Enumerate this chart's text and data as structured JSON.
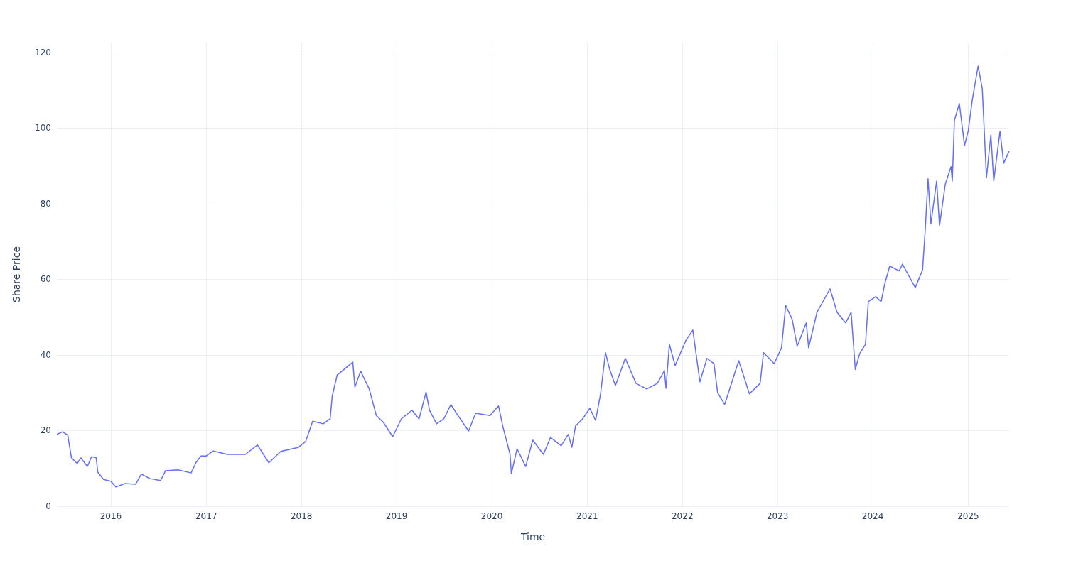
{
  "chart_data": {
    "type": "line",
    "xlabel": "Time",
    "ylabel": "Share Price",
    "x": [
      "2015-06-08",
      "2015-06-30",
      "2015-07-20",
      "2015-08-03",
      "2015-08-25",
      "2015-09-08",
      "2015-10-03",
      "2015-10-19",
      "2015-11-06",
      "2015-11-12",
      "2015-12-04",
      "2016-01-01",
      "2016-01-20",
      "2016-02-24",
      "2016-04-05",
      "2016-04-27",
      "2016-05-30",
      "2016-07-10",
      "2016-07-29",
      "2016-09-16",
      "2016-11-04",
      "2016-11-23",
      "2016-12-12",
      "2017-01-01",
      "2017-01-28",
      "2017-03-23",
      "2017-05-31",
      "2017-07-16",
      "2017-08-29",
      "2017-10-14",
      "2017-12-21",
      "2018-01-17",
      "2018-02-13",
      "2018-03-25",
      "2018-04-21",
      "2018-04-29",
      "2018-05-18",
      "2018-06-14",
      "2018-07-17",
      "2018-07-25",
      "2018-08-16",
      "2018-09-18",
      "2018-10-15",
      "2018-11-11",
      "2018-12-17",
      "2019-01-19",
      "2019-03-01",
      "2019-03-28",
      "2019-04-24",
      "2019-05-07",
      "2019-06-03",
      "2019-07-01",
      "2019-07-28",
      "2019-08-24",
      "2019-10-04",
      "2019-10-31",
      "2019-12-25",
      "2020-01-27",
      "2020-02-12",
      "2020-03-11",
      "2020-03-16",
      "2020-04-07",
      "2020-05-10",
      "2020-06-06",
      "2020-07-17",
      "2020-08-13",
      "2020-09-23",
      "2020-10-20",
      "2020-11-03",
      "2020-11-17",
      "2020-12-14",
      "2021-01-11",
      "2021-02-02",
      "2021-02-21",
      "2021-03-12",
      "2021-03-28",
      "2021-04-19",
      "2021-05-27",
      "2021-07-07",
      "2021-08-17",
      "2021-09-27",
      "2021-10-24",
      "2021-10-30",
      "2021-11-12",
      "2021-12-04",
      "2022-01-14",
      "2022-02-10",
      "2022-03-09",
      "2022-04-05",
      "2022-05-02",
      "2022-05-16",
      "2022-06-12",
      "2022-08-05",
      "2022-09-15",
      "2022-10-26",
      "2022-11-08",
      "2022-12-19",
      "2023-01-16",
      "2023-02-01",
      "2023-02-26",
      "2023-03-17",
      "2023-04-21",
      "2023-04-30",
      "2023-06-01",
      "2023-07-21",
      "2023-08-17",
      "2023-09-19",
      "2023-10-10",
      "2023-10-26",
      "2023-11-12",
      "2023-12-04",
      "2023-12-15",
      "2024-01-12",
      "2024-02-02",
      "2024-02-16",
      "2024-03-06",
      "2024-04-11",
      "2024-04-24",
      "2024-06-12",
      "2024-07-10",
      "2024-07-20",
      "2024-07-31",
      "2024-08-11",
      "2024-09-02",
      "2024-09-13",
      "2024-10-05",
      "2024-10-27",
      "2024-11-01",
      "2024-11-09",
      "2024-11-28",
      "2024-12-18",
      "2025-01-01",
      "2025-01-17",
      "2025-02-08",
      "2025-02-24",
      "2025-03-12",
      "2025-03-29",
      "2025-04-09",
      "2025-05-03",
      "2025-05-17",
      "2025-06-07"
    ],
    "series": [
      {
        "color": "#636efa",
        "values": [
          19.0,
          19.7,
          18.8,
          12.8,
          11.3,
          12.8,
          10.5,
          13.1,
          12.8,
          9.0,
          7.1,
          6.6,
          5.1,
          6.0,
          5.8,
          8.5,
          7.3,
          6.8,
          9.4,
          9.6,
          8.8,
          11.6,
          13.3,
          13.3,
          14.6,
          13.7,
          13.7,
          16.2,
          11.5,
          14.5,
          15.6,
          17.1,
          22.5,
          21.8,
          23.1,
          29.1,
          34.7,
          36.2,
          38.1,
          31.5,
          35.7,
          31.0,
          24.0,
          22.2,
          18.4,
          23.1,
          25.4,
          23.1,
          30.2,
          25.4,
          21.8,
          23.1,
          26.9,
          24.0,
          19.9,
          24.6,
          24.0,
          26.5,
          21.2,
          13.7,
          8.6,
          15.2,
          10.5,
          17.5,
          13.7,
          18.2,
          16.0,
          19.0,
          15.6,
          21.2,
          23.1,
          25.9,
          22.7,
          29.7,
          40.6,
          36.2,
          31.9,
          39.1,
          32.5,
          31.0,
          32.5,
          35.9,
          31.2,
          42.8,
          37.2,
          43.8,
          46.6,
          32.9,
          39.1,
          37.7,
          30.0,
          26.9,
          38.5,
          29.7,
          32.5,
          40.6,
          37.7,
          41.9,
          53.1,
          49.4,
          42.3,
          48.5,
          41.9,
          51.3,
          57.5,
          51.3,
          48.5,
          51.3,
          36.2,
          40.4,
          42.8,
          54.1,
          55.4,
          54.1,
          58.8,
          63.5,
          62.2,
          64.0,
          57.8,
          62.5,
          72.9,
          86.6,
          74.7,
          86.0,
          74.2,
          85.1,
          89.8,
          86.0,
          102.0,
          106.5,
          95.4,
          99.2,
          107.6,
          116.4,
          110.4,
          86.9,
          98.2,
          86.0,
          99.2,
          90.7,
          93.9
        ]
      }
    ],
    "xlim": [
      "2015-06-08",
      "2025-06-07"
    ],
    "xticks": [
      "2016",
      "2017",
      "2018",
      "2019",
      "2020",
      "2021",
      "2022",
      "2023",
      "2024",
      "2025"
    ],
    "ylim": [
      0,
      122.6
    ],
    "yticks": [
      0,
      20,
      40,
      60,
      80,
      100,
      120
    ],
    "grid": true
  }
}
